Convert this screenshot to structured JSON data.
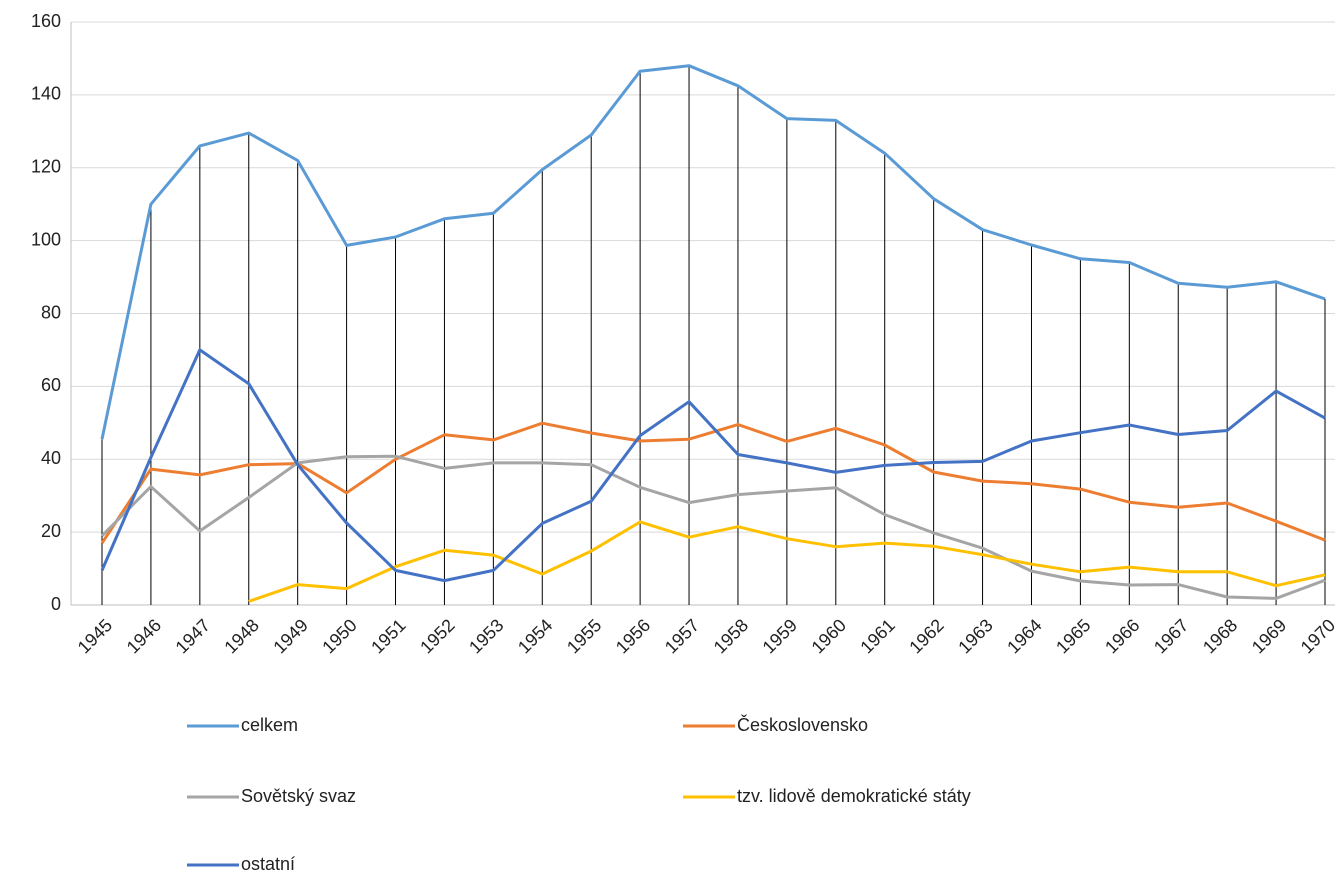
{
  "chart_data": {
    "type": "line",
    "categories": [
      "1945",
      "1946",
      "1947",
      "1948",
      "1949",
      "1950",
      "1951",
      "1952",
      "1953",
      "1954",
      "1955",
      "1956",
      "1957",
      "1958",
      "1959",
      "1960",
      "1961",
      "1962",
      "1963",
      "1964",
      "1965",
      "1966",
      "1967",
      "1968",
      "1969",
      "1970"
    ],
    "series": [
      {
        "name": "celkem",
        "color": "#5b9bd5",
        "values": [
          45.5,
          110,
          126,
          129.5,
          122,
          98.7,
          101,
          106,
          107.5,
          119.5,
          129,
          146.5,
          148,
          142.5,
          133.5,
          133,
          124,
          111.5,
          103,
          98.8,
          95,
          94,
          88.3,
          87.2,
          88.7,
          84
        ]
      },
      {
        "name": "Československo",
        "color": "#ed7d31",
        "values": [
          17,
          37.3,
          35.7,
          38.5,
          38.8,
          30.8,
          40,
          46.7,
          45.3,
          49.9,
          47.2,
          45,
          45.5,
          49.5,
          44.9,
          48.5,
          43.9,
          36.5,
          34,
          33.3,
          31.8,
          28.2,
          26.8,
          28,
          23,
          17.8
        ]
      },
      {
        "name": "Sovětský svaz",
        "color": "#a5a5a5",
        "values": [
          19,
          32.5,
          20.3,
          29.5,
          39,
          40.7,
          40.8,
          37.5,
          39,
          39,
          38.5,
          32.3,
          28.1,
          30.3,
          31.3,
          32.2,
          24.8,
          19.8,
          15.6,
          9.3,
          6.6,
          5.5,
          5.6,
          2.2,
          1.8,
          6.8
        ]
      },
      {
        "name": "tzv. lidově demokratické státy",
        "color": "#ffc000",
        "values": [
          null,
          null,
          null,
          1,
          5.6,
          4.5,
          10.5,
          15,
          13.7,
          8.5,
          14.8,
          22.8,
          18.6,
          21.5,
          18.2,
          16,
          17,
          16.1,
          13.8,
          11.2,
          9.1,
          10.4,
          9.1,
          9.1,
          5.3,
          8.3
        ]
      },
      {
        "name": "ostatní",
        "color": "#4472c4",
        "values": [
          9.5,
          40.5,
          70,
          60.7,
          38.5,
          22.5,
          9.5,
          6.7,
          9.5,
          22.4,
          28.5,
          46.5,
          55.8,
          41.3,
          39,
          36.4,
          38.3,
          39.1,
          39.4,
          45,
          47.3,
          49.4,
          46.8,
          47.9,
          58.7,
          51.3
        ]
      }
    ],
    "ylim": [
      0,
      160
    ],
    "yticks": [
      0,
      20,
      40,
      60,
      80,
      100,
      120,
      140,
      160
    ],
    "grid": true,
    "drop_lines": true
  }
}
